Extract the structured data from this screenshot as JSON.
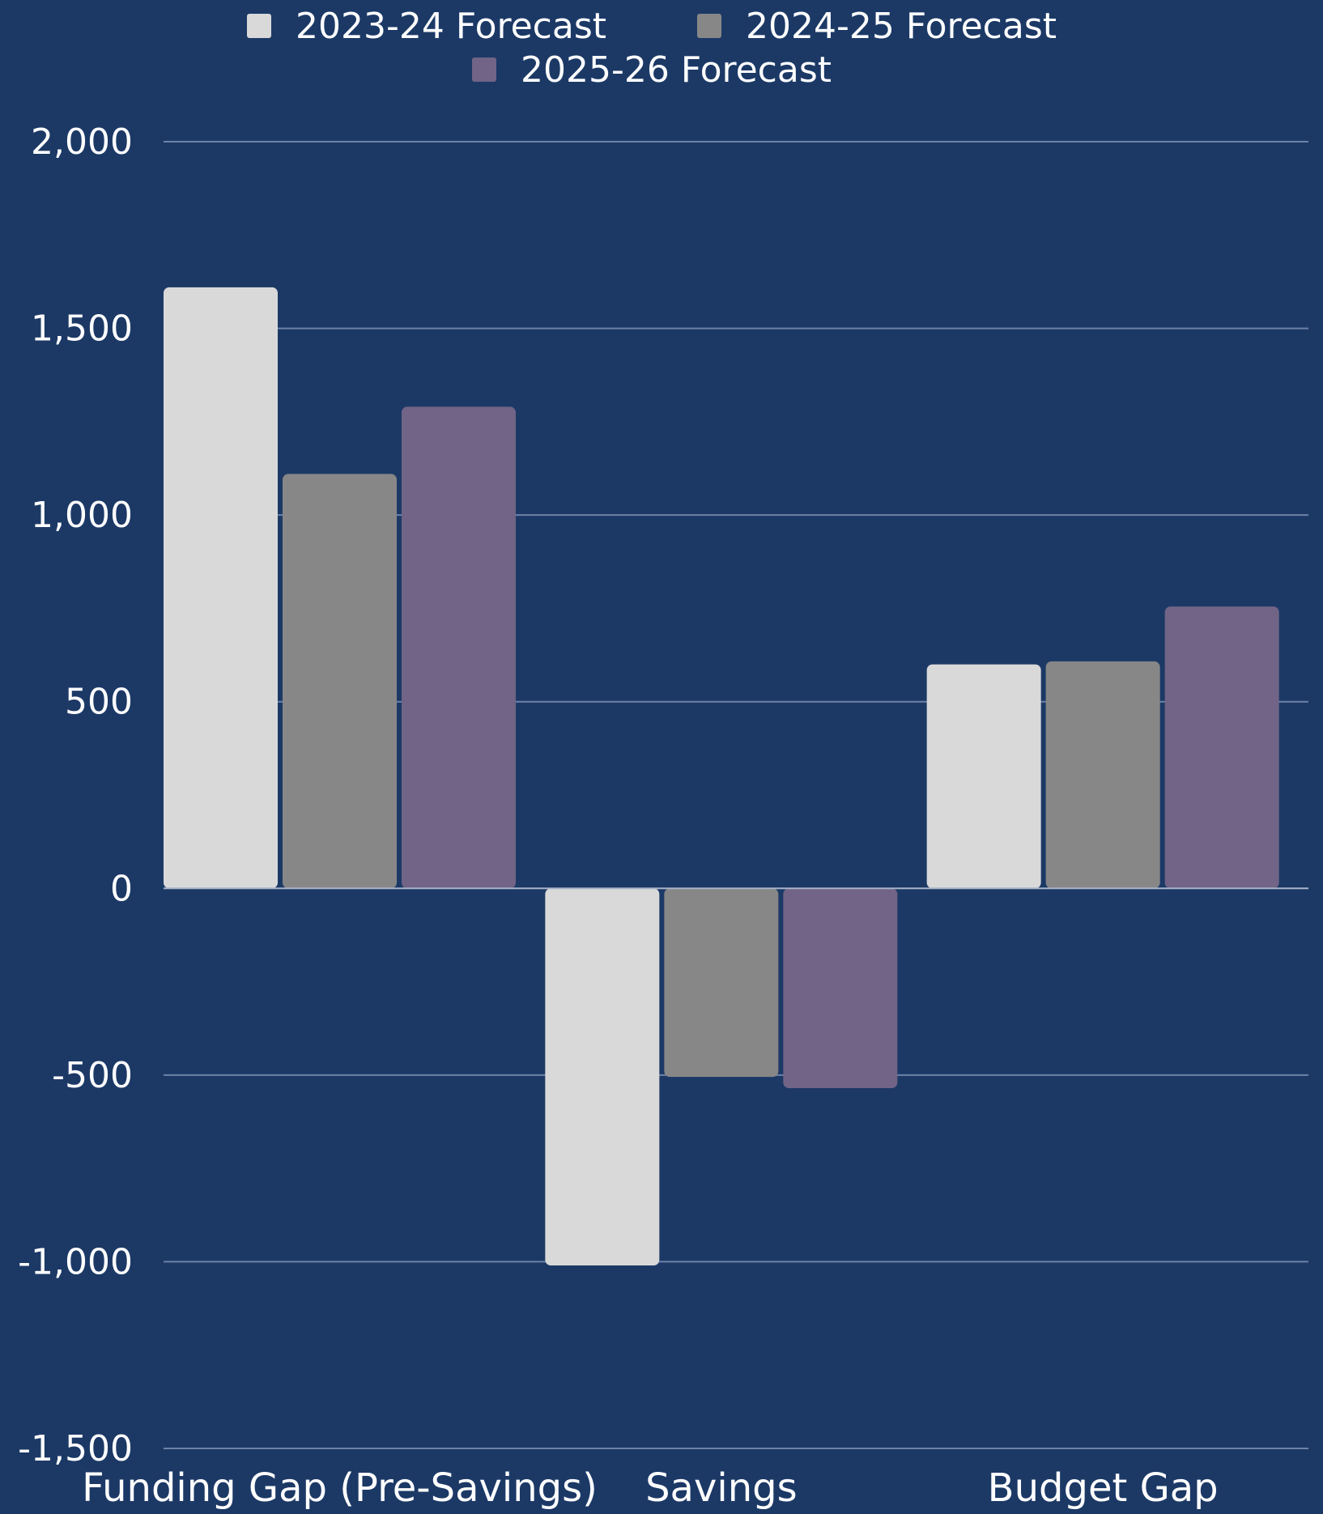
{
  "chart_data": {
    "type": "bar",
    "categories": [
      "Funding Gap (Pre-Savings)",
      "Savings",
      "Budget Gap"
    ],
    "series": [
      {
        "name": "2023-24 Forecast",
        "color": "#d9d9d9",
        "values": [
          1610,
          -1010,
          600
        ]
      },
      {
        "name": "2024-25 Forecast",
        "color": "#878787",
        "values": [
          1110,
          -505,
          608
        ]
      },
      {
        "name": "2025-26 Forecast",
        "color": "#716486",
        "values": [
          1290,
          -535,
          755
        ]
      }
    ],
    "ylim": [
      -1500,
      2000
    ],
    "yticks": [
      -1500,
      -1000,
      -500,
      0,
      500,
      1000,
      1500,
      2000
    ],
    "ytick_labels": [
      "-1,500",
      "-1,000",
      "-500",
      "0",
      "500",
      "1,000",
      "1,500",
      "2,000"
    ],
    "title": "",
    "xlabel": "",
    "ylabel": "",
    "legend_position": "top-center",
    "grid": true,
    "background_color": "#1c3966",
    "gridline_color": "#6e82a6",
    "text_color": "#ffffff"
  }
}
